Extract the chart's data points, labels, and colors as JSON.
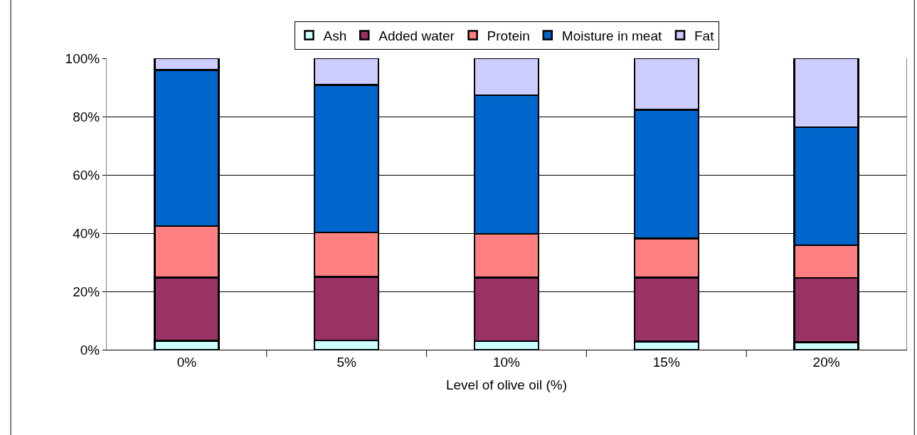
{
  "chart_data": {
    "type": "bar",
    "stacked": true,
    "xlabel": "Level of olive oil (%)",
    "categories": [
      "0%",
      "5%",
      "10%",
      "15%",
      "20%"
    ],
    "series": [
      {
        "name": "Ash",
        "color": "#ccffff",
        "values": [
          3.0,
          3.2,
          2.9,
          2.8,
          2.6
        ]
      },
      {
        "name": "Added water",
        "color": "#993366",
        "values": [
          21.7,
          21.8,
          21.9,
          22.0,
          22.0
        ]
      },
      {
        "name": "Protein",
        "color": "#ff8080",
        "values": [
          17.8,
          15.2,
          15.0,
          13.4,
          11.3
        ]
      },
      {
        "name": "Moisture in meat",
        "color": "#0066cc",
        "values": [
          53.5,
          50.6,
          47.5,
          44.1,
          40.5
        ]
      },
      {
        "name": "Fat",
        "color": "#ccccff",
        "values": [
          4.0,
          9.2,
          12.7,
          17.7,
          23.6
        ]
      }
    ],
    "ylim": [
      0,
      100
    ],
    "yticks": [
      {
        "value": 0,
        "label": "0%"
      },
      {
        "value": 20,
        "label": "20%"
      },
      {
        "value": 40,
        "label": "40%"
      },
      {
        "value": 60,
        "label": "60%"
      },
      {
        "value": 80,
        "label": "80%"
      },
      {
        "value": 100,
        "label": "100%"
      }
    ],
    "grid": "y",
    "legend": "top"
  }
}
